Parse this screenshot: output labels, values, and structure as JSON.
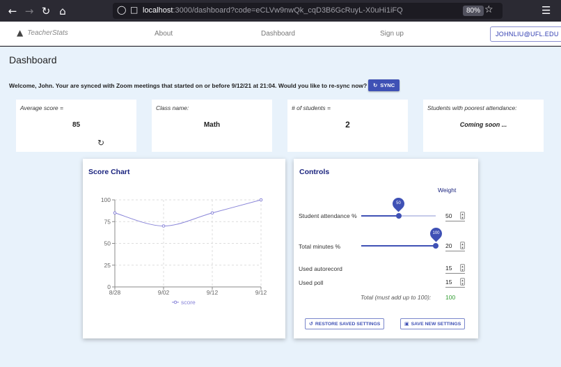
{
  "browser": {
    "back_icon": "arrow-left-icon",
    "url_host": "localhost",
    "url_rest": ":3000/dashboard?code=eCLVw9nwQk_cqD3B6GcRuyL-X0uHi1iFQ",
    "zoom": "80%"
  },
  "nav": {
    "brand": "TeacherStats",
    "about": "About",
    "dashboard": "Dashboard",
    "signup": "Sign up",
    "user": "JOHNLIU@UFL.EDU"
  },
  "page": {
    "title": "Dashboard",
    "welcome": "Welcome, John. Your are synced with Zoom meetings that started on or before 9/12/21 at 21:04. Would you like to re-sync now?",
    "sync": "SYNC"
  },
  "stats": [
    {
      "label": "Average score =",
      "value": "85"
    },
    {
      "label": "Class name:",
      "value": "Math"
    },
    {
      "label": "# of students =",
      "value": "2"
    },
    {
      "label": "Students with poorest attendance:",
      "value": "Coming soon ..."
    }
  ],
  "score_chart": {
    "title": "Score Chart"
  },
  "chart_data": {
    "type": "line",
    "categories": [
      "8/28",
      "9/02",
      "9/12",
      "9/12"
    ],
    "series": [
      {
        "name": "score",
        "values": [
          85,
          70,
          85,
          100
        ],
        "color": "#8884d8"
      }
    ],
    "yticks": [
      0,
      25,
      50,
      75,
      100
    ],
    "ylim": [
      0,
      100
    ],
    "grid": true,
    "legend": "bottom"
  },
  "controls": {
    "title": "Controls",
    "weight_header": "Weight",
    "attendance_label": "Student attendance %",
    "attendance_slider": 50,
    "attendance_weight": "50",
    "minutes_label": "Total minutes %",
    "minutes_slider": 100,
    "minutes_weight": "20",
    "autorecord_label": "Used autorecord",
    "autorecord_weight": "15",
    "poll_label": "Used poll",
    "poll_weight": "15",
    "total_label": "Total (must add up to 100):",
    "total_value": "100",
    "total_color": "#2e9b2e",
    "restore": "RESTORE SAVED SETTINGS",
    "save": "SAVE NEW SETTINGS"
  },
  "colors": {
    "accent": "#3f51b5",
    "page_bg": "#e8f2fb",
    "title": "#1a237e"
  }
}
